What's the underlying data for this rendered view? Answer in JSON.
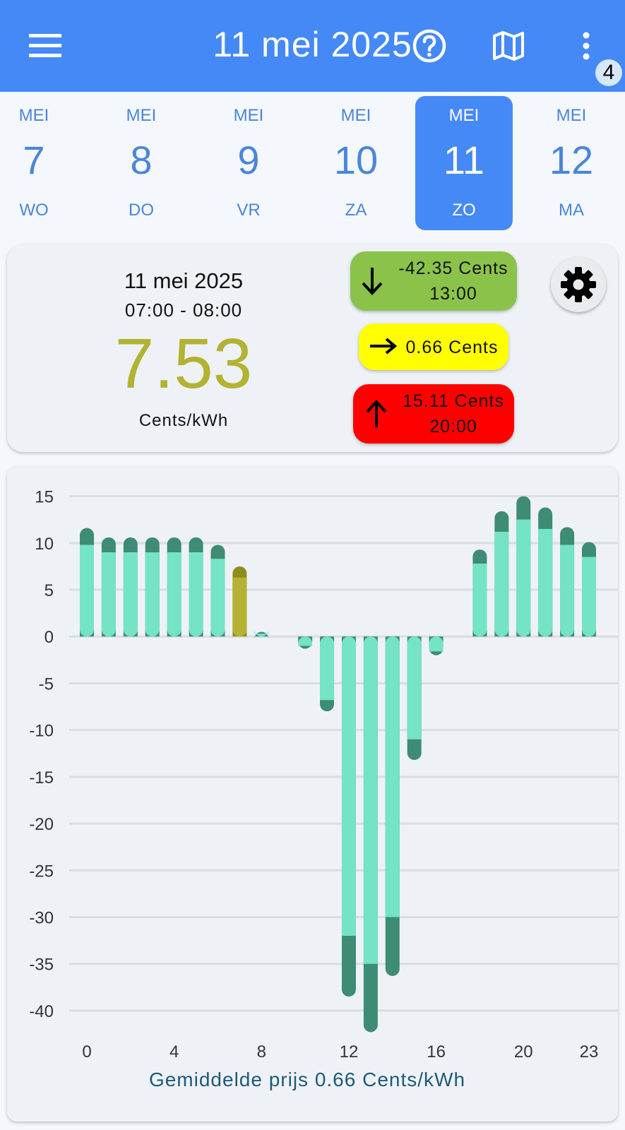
{
  "appbar": {
    "title": "11 mei 2025",
    "icons": [
      "menu-icon",
      "help-icon",
      "map-icon",
      "more-vert-icon"
    ],
    "badge_count": "4",
    "color": "#4589f6"
  },
  "days": [
    {
      "month": "MEI",
      "day": "7",
      "weekday": "WO",
      "selected": false
    },
    {
      "month": "MEI",
      "day": "8",
      "weekday": "DO",
      "selected": false
    },
    {
      "month": "MEI",
      "day": "9",
      "weekday": "VR",
      "selected": false
    },
    {
      "month": "MEI",
      "day": "10",
      "weekday": "ZA",
      "selected": false
    },
    {
      "month": "MEI",
      "day": "11",
      "weekday": "ZO",
      "selected": true
    },
    {
      "month": "MEI",
      "day": "12",
      "weekday": "MA",
      "selected": false
    }
  ],
  "current": {
    "date": "11 mei 2025",
    "time_range": "07:00 - 08:00",
    "price": "7.53",
    "unit": "Cents/kWh",
    "price_color": "#b3b233"
  },
  "lowest": {
    "price": "-42.35 Cents",
    "time": "13:00",
    "color": "#8bc34a",
    "icon": "arrow-down-icon"
  },
  "average": {
    "price": "0.66 Cents",
    "color": "#ffff00",
    "icon": "arrow-right-icon"
  },
  "highest": {
    "price": "15.11 Cents",
    "time": "20:00",
    "color": "#ff0000",
    "icon": "arrow-up-icon"
  },
  "settings": {
    "icon": "gear-icon"
  },
  "chart_data": {
    "type": "bar",
    "stacked": true,
    "x": [
      0,
      1,
      2,
      3,
      4,
      5,
      6,
      7,
      8,
      9,
      10,
      11,
      12,
      13,
      14,
      15,
      16,
      17,
      18,
      19,
      20,
      21,
      22,
      23
    ],
    "x_tick_labels": [
      "0",
      "4",
      "8",
      "12",
      "16",
      "20",
      "23"
    ],
    "x_tick_values": [
      0,
      4,
      8,
      12,
      16,
      20,
      23
    ],
    "series": [
      {
        "values": [
          9.8,
          9.0,
          9.0,
          9.0,
          9.0,
          9.0,
          8.3,
          6.3,
          0.3,
          0.0,
          -1.0,
          -6.8,
          -32.0,
          -35.0,
          -30.0,
          -11.0,
          -1.6,
          0.0,
          7.8,
          11.2,
          12.5,
          11.5,
          9.8,
          8.5
        ],
        "color": "#74e3c6"
      },
      {
        "values": [
          1.8,
          1.6,
          1.6,
          1.6,
          1.6,
          1.6,
          1.5,
          1.2,
          0.2,
          0.0,
          -0.3,
          -1.2,
          -6.5,
          -7.3,
          -6.3,
          -2.2,
          -0.4,
          0.0,
          1.5,
          2.2,
          2.5,
          2.3,
          1.9,
          1.6
        ],
        "color": "#3d8c73"
      }
    ],
    "highlight_index": 7,
    "highlight_colors": [
      "#b3b233",
      "#8d8d1f"
    ],
    "yticks": [
      15,
      10,
      5,
      0,
      -5,
      -10,
      -15,
      -20,
      -25,
      -30,
      -35,
      -40
    ],
    "ylim": [
      -42.5,
      15.5
    ],
    "grid": true,
    "caption": "Gemiddelde prijs 0.66 Cents/kWh",
    "caption_color": "#1e5a78"
  }
}
